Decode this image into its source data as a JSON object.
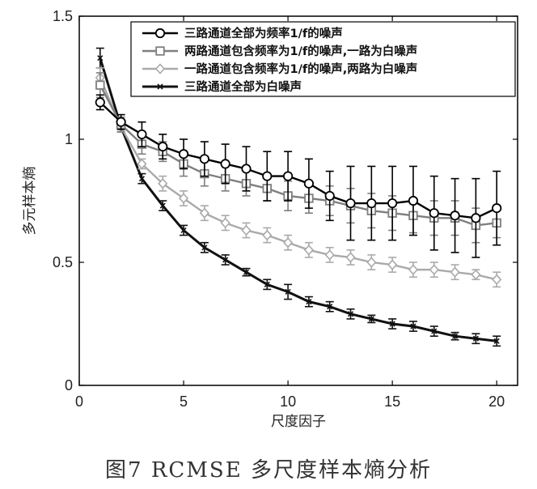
{
  "caption": "图7   RCMSE 多尺度样本熵分析",
  "chart_data": {
    "type": "line",
    "xlabel": "尺度因子",
    "ylabel": "多元样本熵",
    "xlim": [
      0,
      21
    ],
    "ylim": [
      0,
      1.5
    ],
    "xticks": [
      "0",
      "5",
      "10",
      "15",
      "20"
    ],
    "yticks": [
      "0",
      "0.5",
      "1",
      "1.5"
    ],
    "grid": false,
    "legend_position": "top-right",
    "x": [
      1,
      2,
      3,
      4,
      5,
      6,
      7,
      8,
      9,
      10,
      11,
      12,
      13,
      14,
      15,
      16,
      17,
      18,
      19,
      20
    ],
    "series": [
      {
        "name": "三路通道全部为频率1/f的噪声",
        "color": "#000000",
        "marker": "circle",
        "values": [
          1.15,
          1.07,
          1.02,
          0.97,
          0.94,
          0.92,
          0.9,
          0.88,
          0.85,
          0.85,
          0.82,
          0.77,
          0.74,
          0.74,
          0.74,
          0.75,
          0.7,
          0.69,
          0.68,
          0.72
        ],
        "errors": [
          0.03,
          0.03,
          0.05,
          0.05,
          0.06,
          0.07,
          0.08,
          0.09,
          0.1,
          0.1,
          0.1,
          0.1,
          0.15,
          0.15,
          0.15,
          0.14,
          0.15,
          0.15,
          0.16,
          0.15
        ]
      },
      {
        "name": "两路通道包含频率为1/f的噪声,一路为白噪声",
        "color": "#7f7f7f",
        "marker": "square",
        "values": [
          1.22,
          1.06,
          0.98,
          0.95,
          0.9,
          0.86,
          0.84,
          0.82,
          0.8,
          0.77,
          0.76,
          0.75,
          0.73,
          0.71,
          0.7,
          0.69,
          0.68,
          0.68,
          0.65,
          0.66
        ],
        "errors": [
          0.05,
          0.03,
          0.04,
          0.04,
          0.05,
          0.05,
          0.05,
          0.05,
          0.05,
          0.06,
          0.06,
          0.06,
          0.07,
          0.07,
          0.07,
          0.07,
          0.07,
          0.07,
          0.07,
          0.06
        ]
      },
      {
        "name": "一路通道包含频率为1/f的噪声,两路为白噪声",
        "color": "#aaaaaa",
        "marker": "diamond",
        "values": [
          1.25,
          1.05,
          0.9,
          0.82,
          0.76,
          0.7,
          0.66,
          0.63,
          0.61,
          0.58,
          0.55,
          0.53,
          0.52,
          0.5,
          0.49,
          0.47,
          0.47,
          0.46,
          0.45,
          0.43
        ],
        "errors": [
          0.04,
          0.02,
          0.02,
          0.03,
          0.03,
          0.03,
          0.03,
          0.03,
          0.03,
          0.03,
          0.03,
          0.03,
          0.03,
          0.03,
          0.03,
          0.03,
          0.03,
          0.03,
          0.02,
          0.03
        ]
      },
      {
        "name": "三路通道全部为白噪声",
        "color": "#111111",
        "marker": "x",
        "values": [
          1.33,
          1.05,
          0.84,
          0.73,
          0.63,
          0.56,
          0.51,
          0.46,
          0.41,
          0.38,
          0.34,
          0.32,
          0.29,
          0.27,
          0.25,
          0.24,
          0.22,
          0.2,
          0.19,
          0.18
        ],
        "errors": [
          0.04,
          0.02,
          0.02,
          0.02,
          0.02,
          0.02,
          0.02,
          0.015,
          0.02,
          0.03,
          0.02,
          0.02,
          0.02,
          0.015,
          0.02,
          0.02,
          0.02,
          0.015,
          0.02,
          0.02
        ]
      }
    ]
  }
}
